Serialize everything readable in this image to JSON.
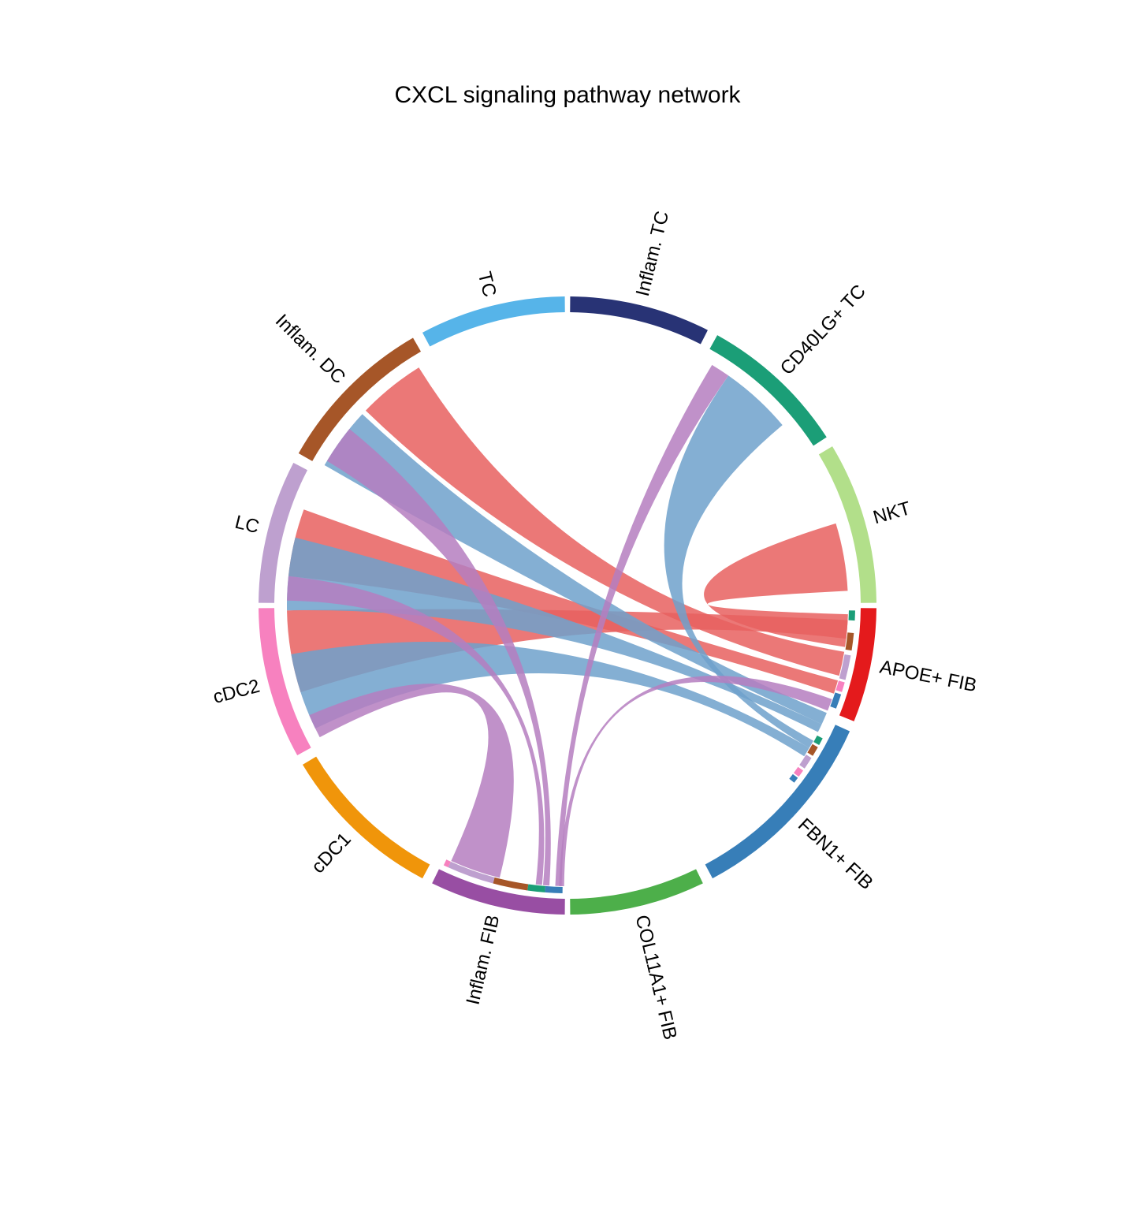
{
  "chart_data": {
    "type": "chord",
    "title": "CXCL signaling pathway network",
    "sectors": [
      {
        "name": "APOE+ FIB",
        "color": "#E41A1C"
      },
      {
        "name": "NKT",
        "color": "#B2DF8A"
      },
      {
        "name": "CD40LG+ TC",
        "color": "#1B9E77"
      },
      {
        "name": "Inflam. TC",
        "color": "#283375"
      },
      {
        "name": "TC",
        "color": "#56B4E9"
      },
      {
        "name": "Inflam. DC",
        "color": "#A65628"
      },
      {
        "name": "LC",
        "color": "#BEA0CF"
      },
      {
        "name": "cDC2",
        "color": "#F781BF"
      },
      {
        "name": "cDC1",
        "color": "#F0950A"
      },
      {
        "name": "Inflam. FIB",
        "color": "#984EA3"
      },
      {
        "name": "COL11A1+ FIB",
        "color": "#4DAF4A"
      },
      {
        "name": "FBN1+ FIB",
        "color": "#377EB8"
      }
    ],
    "links": [
      {
        "source": "APOE+ FIB",
        "target": "NKT",
        "value": 1.0
      },
      {
        "source": "APOE+ FIB",
        "target": "Inflam. DC",
        "value": 1.0
      },
      {
        "source": "APOE+ FIB",
        "target": "LC",
        "value": 1.25
      },
      {
        "source": "APOE+ FIB",
        "target": "cDC2",
        "value": 1.15
      },
      {
        "source": "FBN1+ FIB",
        "target": "CD40LG+ TC",
        "value": 0.9
      },
      {
        "source": "FBN1+ FIB",
        "target": "Inflam. DC",
        "value": 0.85
      },
      {
        "source": "FBN1+ FIB",
        "target": "LC",
        "value": 1.05
      },
      {
        "source": "FBN1+ FIB",
        "target": "cDC2",
        "value": 1.05
      },
      {
        "source": "Inflam. FIB",
        "target": "CD40LG+ TC",
        "value": 0.2
      },
      {
        "source": "Inflam. FIB",
        "target": "Inflam. DC",
        "value": 0.2
      },
      {
        "source": "Inflam. FIB",
        "target": "LC",
        "value": 0.3
      },
      {
        "source": "Inflam. FIB",
        "target": "cDC2",
        "value": 0.3
      },
      {
        "source": "Inflam. FIB",
        "target": "FBN1+ FIB",
        "value": 0.08
      }
    ],
    "legend": "none"
  }
}
